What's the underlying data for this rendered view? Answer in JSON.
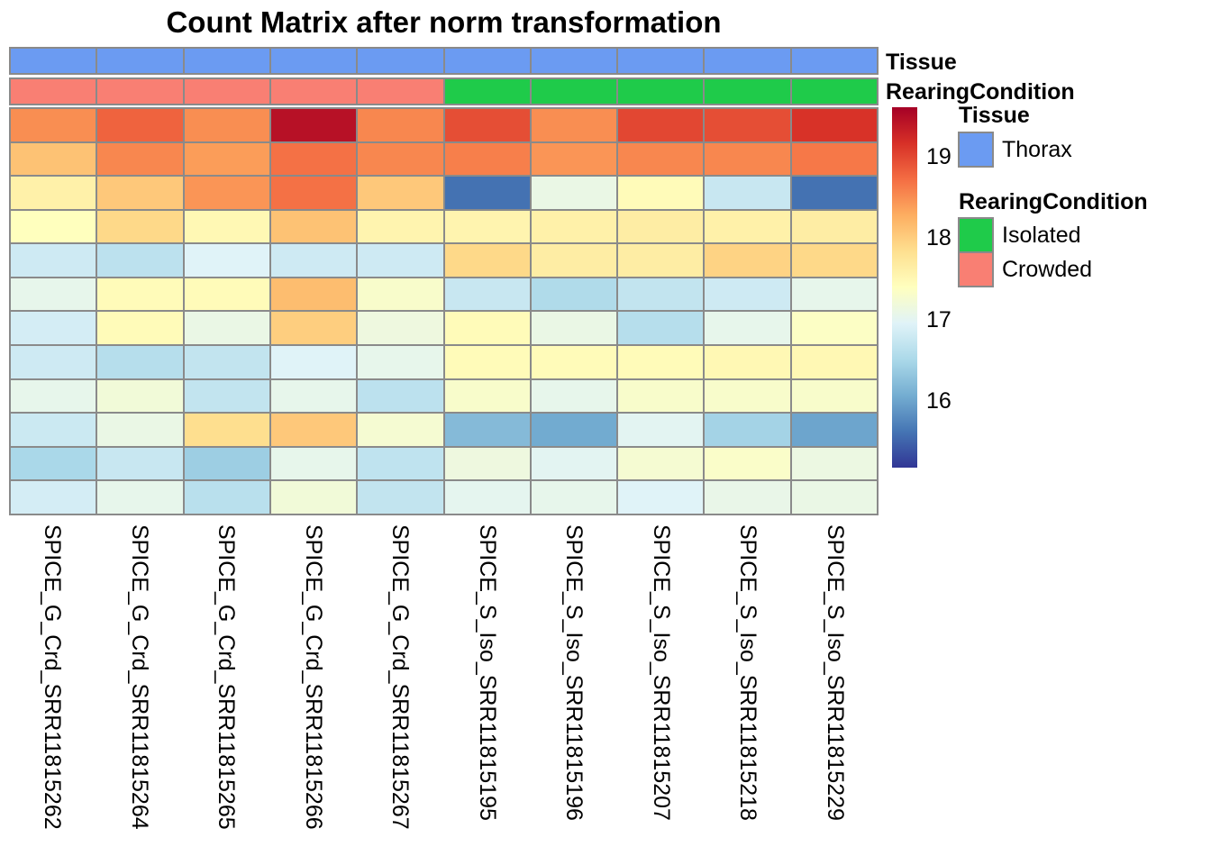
{
  "title": "Count Matrix after norm transformation",
  "chart_data": {
    "type": "heatmap",
    "title": "Count Matrix after norm transformation",
    "columns": [
      "SPICE_G_Crd_SRR11815262",
      "SPICE_G_Crd_SRR11815264",
      "SPICE_G_Crd_SRR11815265",
      "SPICE_G_Crd_SRR11815266",
      "SPICE_G_Crd_SRR11815267",
      "SPICE_S_Iso_SRR11815195",
      "SPICE_S_Iso_SRR11815196",
      "SPICE_S_Iso_SRR11815207",
      "SPICE_S_Iso_SRR11815218",
      "SPICE_S_Iso_SRR11815229"
    ],
    "values": [
      [
        18.5,
        18.8,
        18.5,
        19.45,
        18.55,
        18.95,
        18.5,
        19.0,
        18.95,
        19.15
      ],
      [
        18.1,
        18.55,
        18.4,
        18.7,
        18.55,
        18.6,
        18.45,
        18.55,
        18.55,
        18.65
      ],
      [
        17.6,
        18.05,
        18.45,
        18.7,
        18.05,
        15.6,
        17.1,
        17.45,
        16.75,
        15.6
      ],
      [
        17.4,
        17.9,
        17.5,
        18.1,
        17.55,
        17.55,
        17.6,
        17.65,
        17.6,
        17.65
      ],
      [
        16.8,
        16.65,
        16.95,
        16.8,
        16.8,
        17.9,
        17.65,
        17.65,
        17.95,
        17.9
      ],
      [
        17.05,
        17.45,
        17.45,
        18.15,
        17.3,
        16.75,
        16.55,
        16.7,
        16.8,
        17.05
      ],
      [
        16.85,
        17.45,
        17.1,
        18.0,
        17.15,
        17.45,
        17.1,
        16.6,
        17.05,
        17.35
      ],
      [
        16.8,
        16.6,
        16.7,
        16.95,
        17.05,
        17.45,
        17.45,
        17.45,
        17.5,
        17.5
      ],
      [
        17.05,
        17.2,
        16.7,
        17.05,
        16.65,
        17.3,
        17.05,
        17.3,
        17.3,
        17.3
      ],
      [
        16.78,
        17.1,
        17.85,
        18.05,
        17.25,
        16.2,
        16.05,
        17.0,
        16.45,
        16.0
      ],
      [
        16.5,
        16.75,
        16.4,
        17.05,
        16.68,
        17.15,
        17.0,
        17.25,
        17.32,
        17.12
      ],
      [
        16.85,
        17.05,
        16.63,
        17.2,
        16.7,
        17.02,
        17.05,
        16.95,
        17.08,
        17.1
      ]
    ],
    "value_domain": [
      15.18,
      19.61
    ],
    "colormap_stops": [
      "#313695",
      "#4575b4",
      "#74add1",
      "#abd9e9",
      "#e0f3f8",
      "#ffffbf",
      "#fee090",
      "#fdae61",
      "#f46d43",
      "#d73027",
      "#a50026"
    ],
    "colorbar_ticks": [
      19,
      18,
      17,
      16
    ],
    "grid_line_color": "#8a8a8a",
    "column_annotations": {
      "Tissue": [
        "Thorax",
        "Thorax",
        "Thorax",
        "Thorax",
        "Thorax",
        "Thorax",
        "Thorax",
        "Thorax",
        "Thorax",
        "Thorax"
      ],
      "RearingCondition": [
        "Crowded",
        "Crowded",
        "Crowded",
        "Crowded",
        "Crowded",
        "Isolated",
        "Isolated",
        "Isolated",
        "Isolated",
        "Isolated"
      ]
    },
    "annotation_colors": {
      "Thorax": "#6b9bf2",
      "Isolated": "#1fcb4a",
      "Crowded": "#f97f73"
    }
  },
  "annotation_row_labels": {
    "tissue": "Tissue",
    "rearing": "RearingCondition"
  },
  "legend": {
    "tissue": {
      "title": "Tissue",
      "items": [
        {
          "label": "Thorax",
          "color": "#6b9bf2"
        }
      ]
    },
    "rearing": {
      "title": "RearingCondition",
      "items": [
        {
          "label": "Isolated",
          "color": "#1fcb4a"
        },
        {
          "label": "Crowded",
          "color": "#f97f73"
        }
      ]
    }
  }
}
